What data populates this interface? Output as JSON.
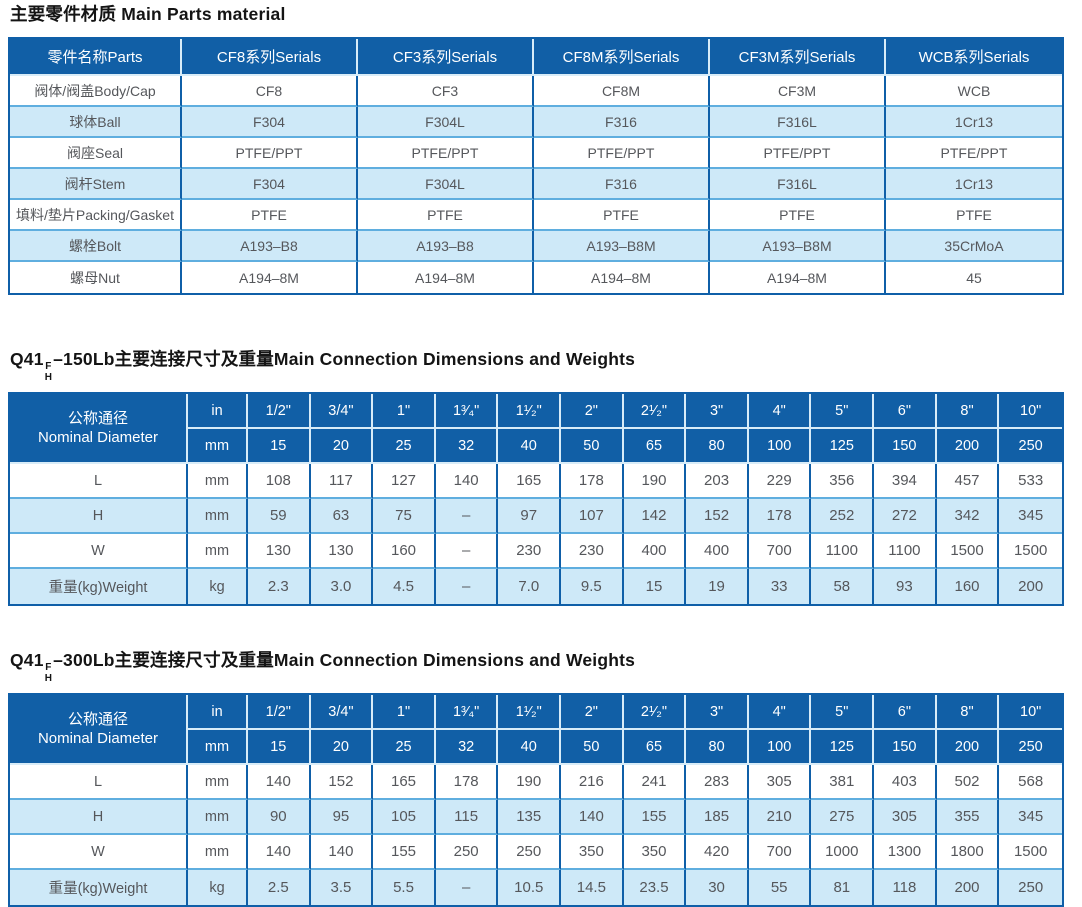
{
  "colors": {
    "header_bg": "#115FA6",
    "row_alt": "#CEE9F8",
    "border_dark": "#0F5FA8",
    "border_light": "#5FAEDF",
    "header_divider": "#D8ECF8",
    "text_dark": "#55575B",
    "title_text": "#141414"
  },
  "materials_table": {
    "title": "主要零件材质 Main Parts material",
    "columns": [
      "零件名称Parts",
      "CF8系列Serials",
      "CF3系列Serials",
      "CF8M系列Serials",
      "CF3M系列Serials",
      "WCB系列Serials"
    ],
    "rows": [
      {
        "label": "阀体/阀盖Body/Cap",
        "values": [
          "CF8",
          "CF3",
          "CF8M",
          "CF3M",
          "WCB"
        ]
      },
      {
        "label": "球体Ball",
        "values": [
          "F304",
          "F304L",
          "F316",
          "F316L",
          "1Cr13"
        ]
      },
      {
        "label": "阀座Seal",
        "values": [
          "PTFE/PPT",
          "PTFE/PPT",
          "PTFE/PPT",
          "PTFE/PPT",
          "PTFE/PPT"
        ]
      },
      {
        "label": "阀杆Stem",
        "values": [
          "F304",
          "F304L",
          "F316",
          "F316L",
          "1Cr13"
        ]
      },
      {
        "label": "填料/垫片Packing/Gasket",
        "values": [
          "PTFE",
          "PTFE",
          "PTFE",
          "PTFE",
          "PTFE"
        ]
      },
      {
        "label": "螺栓Bolt",
        "values": [
          "A193–B8",
          "A193–B8",
          "A193–B8M",
          "A193–B8M",
          "35CrMoA"
        ]
      },
      {
        "label": "螺母Nut",
        "values": [
          "A194–8M",
          "A194–8M",
          "A194–8M",
          "A194–8M",
          "45"
        ]
      }
    ]
  },
  "dimension_tables": [
    {
      "title_prefix": "Q41",
      "title_sup": "F",
      "title_sub": "H",
      "title_rest": "–150Lb主要连接尺寸及重量Main Connection Dimensions and Weights",
      "corner_label_cn": "公称通径",
      "corner_label_en": "Nominal Diameter",
      "unit_in": "in",
      "unit_mm": "mm",
      "sizes_in": [
        "1/2\"",
        "3/4\"",
        "1\"",
        "1³⁄₄\"",
        "1¹⁄₂\"",
        "2\"",
        "2¹⁄₂\"",
        "3\"",
        "4\"",
        "5\"",
        "6\"",
        "8\"",
        "10\""
      ],
      "sizes_mm": [
        "15",
        "20",
        "25",
        "32",
        "40",
        "50",
        "65",
        "80",
        "100",
        "125",
        "150",
        "200",
        "250"
      ],
      "rows": [
        {
          "label": "L",
          "unit": "mm",
          "values": [
            "108",
            "117",
            "127",
            "140",
            "165",
            "178",
            "190",
            "203",
            "229",
            "356",
            "394",
            "457",
            "533"
          ]
        },
        {
          "label": "H",
          "unit": "mm",
          "values": [
            "59",
            "63",
            "75",
            "–",
            "97",
            "107",
            "142",
            "152",
            "178",
            "252",
            "272",
            "342",
            "345"
          ]
        },
        {
          "label": "W",
          "unit": "mm",
          "values": [
            "130",
            "130",
            "160",
            "–",
            "230",
            "230",
            "400",
            "400",
            "700",
            "1100",
            "1100",
            "1500",
            "1500"
          ]
        },
        {
          "label": "重量(kg)Weight",
          "unit": "kg",
          "values": [
            "2.3",
            "3.0",
            "4.5",
            "–",
            "7.0",
            "9.5",
            "15",
            "19",
            "33",
            "58",
            "93",
            "160",
            "200"
          ]
        }
      ]
    },
    {
      "title_prefix": "Q41",
      "title_sup": "F",
      "title_sub": "H",
      "title_rest": "–300Lb主要连接尺寸及重量Main Connection Dimensions and Weights",
      "corner_label_cn": "公称通径",
      "corner_label_en": "Nominal Diameter",
      "unit_in": "in",
      "unit_mm": "mm",
      "sizes_in": [
        "1/2\"",
        "3/4\"",
        "1\"",
        "1³⁄₄\"",
        "1¹⁄₂\"",
        "2\"",
        "2¹⁄₂\"",
        "3\"",
        "4\"",
        "5\"",
        "6\"",
        "8\"",
        "10\""
      ],
      "sizes_mm": [
        "15",
        "20",
        "25",
        "32",
        "40",
        "50",
        "65",
        "80",
        "100",
        "125",
        "150",
        "200",
        "250"
      ],
      "rows": [
        {
          "label": "L",
          "unit": "mm",
          "values": [
            "140",
            "152",
            "165",
            "178",
            "190",
            "216",
            "241",
            "283",
            "305",
            "381",
            "403",
            "502",
            "568"
          ]
        },
        {
          "label": "H",
          "unit": "mm",
          "values": [
            "90",
            "95",
            "105",
            "115",
            "135",
            "140",
            "155",
            "185",
            "210",
            "275",
            "305",
            "355",
            "345"
          ]
        },
        {
          "label": "W",
          "unit": "mm",
          "values": [
            "140",
            "140",
            "155",
            "250",
            "250",
            "350",
            "350",
            "420",
            "700",
            "1000",
            "1300",
            "1800",
            "1500"
          ]
        },
        {
          "label": "重量(kg)Weight",
          "unit": "kg",
          "values": [
            "2.5",
            "3.5",
            "5.5",
            "–",
            "10.5",
            "14.5",
            "23.5",
            "30",
            "55",
            "81",
            "118",
            "200",
            "250"
          ]
        }
      ]
    }
  ]
}
